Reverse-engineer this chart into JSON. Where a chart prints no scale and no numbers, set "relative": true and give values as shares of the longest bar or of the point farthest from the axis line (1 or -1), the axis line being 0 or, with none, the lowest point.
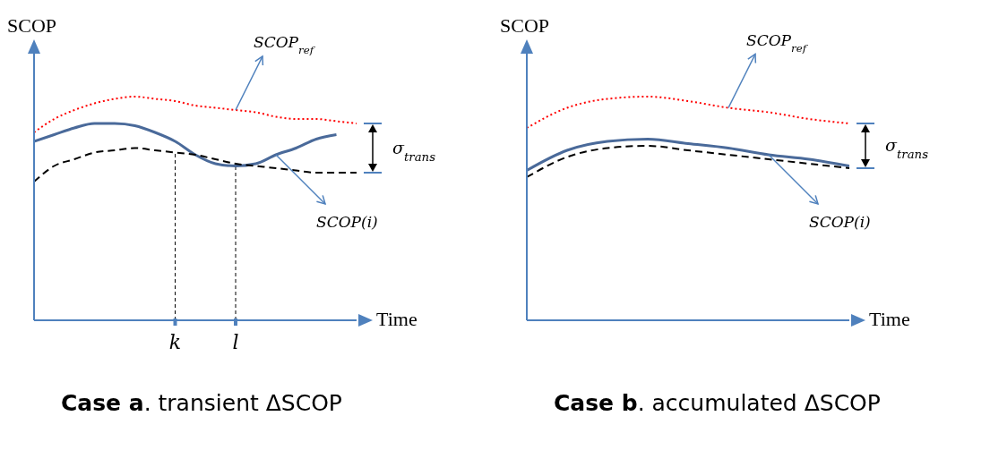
{
  "chart_data": [
    {
      "type": "line",
      "title": "Case a. transient ΔSCOP",
      "ylabel": "SCOP",
      "xlabel": "Time",
      "relative": true,
      "marker": "none",
      "grid": false,
      "categories": [
        null,
        null,
        null,
        null,
        null,
        null,
        null,
        "k",
        null,
        null,
        "l",
        null,
        null,
        null,
        null,
        null,
        null
      ],
      "series": [
        {
          "name": "SCOP$_{ref}$",
          "color": "#ff0000",
          "line_style": "dotted",
          "values": [
            0.84,
            0.9,
            0.94,
            0.97,
            0.99,
            1,
            0.99,
            0.98,
            0.96,
            0.95,
            0.94,
            0.93,
            0.91,
            0.9,
            0.9,
            0.89,
            0.88
          ]
        },
        {
          "name": "SCOP(i)",
          "color": "#4a6a9a",
          "line_style": "solid",
          "values": [
            0.8,
            0.83,
            0.86,
            0.88,
            0.88,
            0.87,
            0.84,
            0.8,
            0.74,
            0.7,
            0.69,
            0.7,
            0.74,
            0.77,
            0.81,
            0.83,
            null
          ]
        },
        {
          "color": "#000000",
          "line_style": "dashed",
          "values": [
            0.62,
            0.69,
            0.72,
            0.75,
            0.76,
            0.77,
            0.76,
            0.75,
            0.74,
            0.72,
            0.7,
            0.69,
            0.68,
            0.67,
            0.66,
            0.66,
            0.66
          ]
        }
      ],
      "ref_lines": [
        {
          "axis": "x",
          "value": "k"
        },
        {
          "axis": "x",
          "value": "l"
        }
      ],
      "annotations": [
        "σ$_{trans}$"
      ]
    },
    {
      "type": "line",
      "title": "Case b. accumulated ΔSCOP",
      "ylabel": "SCOP",
      "xlabel": "Time",
      "relative": true,
      "marker": "none",
      "grid": false,
      "categories": [
        null,
        null,
        null,
        null,
        null,
        null,
        null,
        null,
        null
      ],
      "series": [
        {
          "name": "SCOP$_{ref}$",
          "color": "#ff0000",
          "line_style": "dotted",
          "values": [
            0.86,
            0.95,
            0.99,
            1,
            0.98,
            0.95,
            0.93,
            0.9,
            0.88
          ]
        },
        {
          "name": "SCOP(i)",
          "color": "#4a6a9a",
          "line_style": "solid",
          "values": [
            0.67,
            0.76,
            0.8,
            0.81,
            0.79,
            0.77,
            0.74,
            0.72,
            0.69
          ]
        },
        {
          "color": "#000000",
          "line_style": "dashed",
          "values": [
            0.64,
            0.73,
            0.77,
            0.78,
            0.76,
            0.74,
            0.72,
            0.7,
            0.68
          ]
        }
      ],
      "annotations": [
        "σ$_{trans}$"
      ]
    }
  ]
}
